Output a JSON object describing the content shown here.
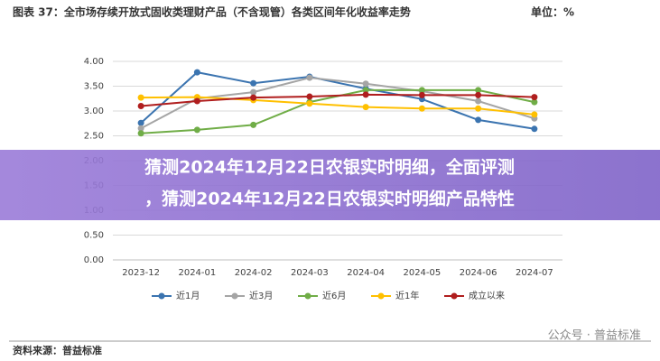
{
  "header": {
    "title": "图表 37：全市场存续开放式固收类理财产品（不含现管）各类区间年化收益率走势",
    "unit": "单位：%"
  },
  "chart_data": {
    "type": "line",
    "categories": [
      "2023-12",
      "2024-01",
      "2024-02",
      "2024-03",
      "2024-04",
      "2024-05",
      "2024-06",
      "2024-07"
    ],
    "series": [
      {
        "name": "近1月",
        "color": "#3b74b0",
        "values": [
          2.76,
          3.78,
          3.56,
          3.69,
          3.45,
          3.24,
          2.82,
          2.64
        ]
      },
      {
        "name": "近3月",
        "color": "#a5a5a5",
        "values": [
          2.65,
          3.25,
          3.38,
          3.67,
          3.55,
          3.4,
          3.2,
          2.85
        ]
      },
      {
        "name": "近6月",
        "color": "#70ad47",
        "values": [
          2.55,
          2.62,
          2.72,
          3.18,
          3.42,
          3.42,
          3.42,
          3.18
        ]
      },
      {
        "name": "近1年",
        "color": "#ffc000",
        "values": [
          3.27,
          3.28,
          3.22,
          3.15,
          3.08,
          3.05,
          3.05,
          2.93
        ]
      },
      {
        "name": "成立以来",
        "color": "#b01e1e",
        "values": [
          3.1,
          3.2,
          3.27,
          3.29,
          3.33,
          3.32,
          3.32,
          3.28
        ]
      }
    ],
    "ylim": [
      0,
      4
    ],
    "yticks": [
      {
        "value": 0,
        "label": "0.00"
      },
      {
        "value": 0.5,
        "label": "0.50"
      },
      {
        "value": 1,
        "label": "1.00"
      },
      {
        "value": 1.5,
        "label": "1.50"
      },
      {
        "value": 2,
        "label": "2.00"
      },
      {
        "value": 2.5,
        "label": "2.50"
      },
      {
        "value": 3,
        "label": "3.00"
      },
      {
        "value": 3.5,
        "label": "3.50"
      },
      {
        "value": 4,
        "label": "4.00"
      }
    ],
    "grid": true,
    "legend": "bottom"
  },
  "banner": {
    "lines": [
      "猜测2024年12月22日农银实时明细，全面评测",
      "，猜测2024年12月22日农银实时明细产品特性"
    ]
  },
  "source": "资料来源：普益标准",
  "watermark": "公众号 · 普益标准"
}
